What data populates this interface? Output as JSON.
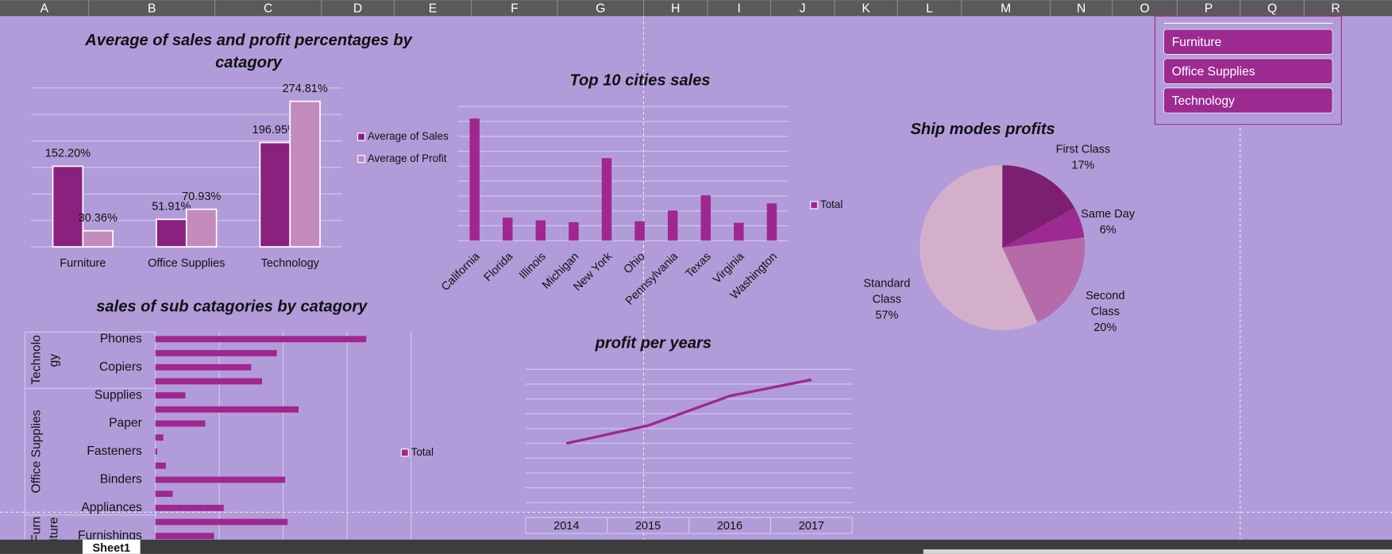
{
  "columns": [
    "A",
    "B",
    "C",
    "D",
    "E",
    "F",
    "G",
    "H",
    "I",
    "J",
    "K",
    "L",
    "M",
    "N",
    "O",
    "P",
    "Q",
    "R"
  ],
  "slicer": {
    "items": [
      "Furniture",
      "Office Supplies",
      "Technology"
    ]
  },
  "sheet_tab": "Sheet1",
  "chart_data": [
    {
      "type": "bar",
      "title": "Average of sales and profit percentages by catagory",
      "categories": [
        "Furniture",
        "Office Supplies",
        "Technology"
      ],
      "series": [
        {
          "name": "Average of Sales",
          "color": "#8b217e",
          "values": [
            152.2,
            51.91,
            196.95
          ],
          "value_labels": [
            "152.20%",
            "51.91%",
            "196.95%"
          ]
        },
        {
          "name": "Average of Profit",
          "color": "#c48bbd",
          "values": [
            30.36,
            70.93,
            274.81
          ],
          "value_labels": [
            "30.36%",
            "70.93%",
            "274.81%"
          ]
        }
      ],
      "ylim": [
        0,
        300
      ],
      "yticks": [
        0,
        50,
        100,
        150,
        200,
        250,
        300
      ],
      "grid": true,
      "legend": "right"
    },
    {
      "type": "bar",
      "title": "Top 10 cities sales",
      "categories": [
        "California",
        "Florida",
        "Illinois",
        "Michigan",
        "New York",
        "Ohio",
        "Pennsylvania",
        "Texas",
        "Virginia",
        "Washington"
      ],
      "series": [
        {
          "name": "Total",
          "color": "#a0278f",
          "values": [
            410000,
            77000,
            68000,
            62000,
            277000,
            65000,
            101000,
            152000,
            60000,
            125000
          ]
        }
      ],
      "ylim": [
        0,
        450000
      ],
      "yticks": [
        0,
        50000,
        100000,
        150000,
        200000,
        250000,
        300000,
        350000,
        400000,
        450000
      ],
      "grid": true,
      "legend": "right"
    },
    {
      "type": "pie",
      "title": "Ship modes profits",
      "categories": [
        "First Class",
        "Same Day",
        "Second Class",
        "Standard Class"
      ],
      "values": [
        17,
        6,
        20,
        57
      ],
      "value_labels": [
        "17%",
        "6%",
        "20%",
        "57%"
      ],
      "colors": [
        "#7d1f71",
        "#9c2a90",
        "#b56ba9",
        "#d4afcc"
      ]
    },
    {
      "type": "bar",
      "orientation": "horizontal",
      "title": "sales of sub catagories by catagory",
      "series_name": "Total",
      "color": "#a0278f",
      "groups": [
        {
          "name": "Technology",
          "categories": [
            "Phones",
            null,
            "Copiers",
            null
          ],
          "values": [
            330000,
            190000,
            150000,
            167000
          ]
        },
        {
          "name": "Office Supplies",
          "categories": [
            "Supplies",
            null,
            "Paper",
            null,
            "Fasteners",
            null,
            "Binders",
            null,
            "Appliances"
          ],
          "values": [
            47000,
            224000,
            78000,
            12500,
            3000,
            16500,
            203000,
            27000,
            107000
          ]
        },
        {
          "name": "Furniture",
          "categories": [
            null,
            "Furnishings"
          ],
          "values": [
            207000,
            92000
          ]
        }
      ],
      "xlim": [
        0,
        400000
      ],
      "xticks": [
        0,
        100000,
        200000,
        300000,
        400000
      ],
      "grid": true,
      "legend": "right"
    },
    {
      "type": "line",
      "title": "profit per years",
      "categories": [
        "2014",
        "2015",
        "2016",
        "2017"
      ],
      "values": [
        50000,
        62000,
        82000,
        93000
      ],
      "color": "#a0278f",
      "ylim": [
        0,
        100000
      ],
      "yticks": [
        0,
        10000,
        20000,
        30000,
        40000,
        50000,
        60000,
        70000,
        80000,
        90000,
        100000
      ],
      "grid": true
    }
  ]
}
